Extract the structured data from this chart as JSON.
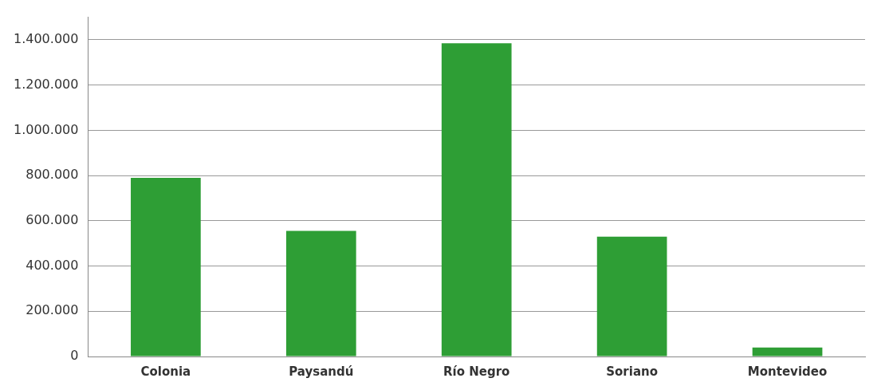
{
  "chart_data": {
    "type": "bar",
    "categories": [
      "Colonia",
      "Paysandú",
      "Río Negro",
      "Soriano",
      "Montevideo"
    ],
    "values": [
      790000,
      555000,
      1385000,
      530000,
      40000
    ],
    "color": "#2e9e35",
    "ylim": [
      0,
      1500000
    ],
    "yticks": [
      {
        "value": 0,
        "label": "0"
      },
      {
        "value": 200000,
        "label": "200.000"
      },
      {
        "value": 400000,
        "label": "400.000"
      },
      {
        "value": 600000,
        "label": "600.000"
      },
      {
        "value": 800000,
        "label": "800.000"
      },
      {
        "value": 1000000,
        "label": "1.000.000"
      },
      {
        "value": 1200000,
        "label": "1.200.000"
      },
      {
        "value": 1400000,
        "label": "1.400.000"
      }
    ],
    "grid": "y",
    "legend": false
  }
}
